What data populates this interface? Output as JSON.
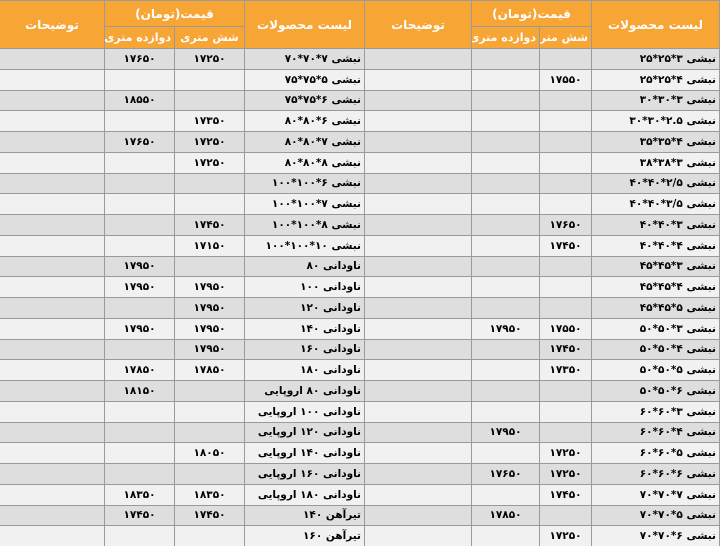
{
  "header": {
    "product": "لیست محصولات",
    "price": "قیمت(تومان)",
    "six": "شش متری",
    "twelve": "دوازده متری",
    "notes": "توضیحات"
  },
  "tables": [
    {
      "rows": [
        [
          "نبشی ۳*۲۵*۲۵",
          null,
          null,
          null
        ],
        [
          "نبشی ۴*۲۵*۲۵",
          "۱۷۵۵۰",
          null,
          null
        ],
        [
          "نبشی ۳*۳۰*۳۰",
          null,
          null,
          null
        ],
        [
          "نبشی ۲.۵*۳۰*۳۰",
          null,
          null,
          null
        ],
        [
          "نبشی ۴*۳۵*۳۵",
          null,
          null,
          null
        ],
        [
          "نبشی ۳*۳۸*۳۸",
          null,
          null,
          null
        ],
        [
          "نبشی ۲/۵*۴۰*۴۰",
          null,
          null,
          null
        ],
        [
          "نبشی ۳/۵*۴۰*۴۰",
          null,
          null,
          null
        ],
        [
          "نبشی ۳*۴۰*۴۰",
          "۱۷۶۵۰",
          null,
          null
        ],
        [
          "نبشی ۴*۴۰*۴۰",
          "۱۷۴۵۰",
          null,
          null
        ],
        [
          "نبشی ۳*۴۵*۴۵",
          null,
          null,
          null
        ],
        [
          "نبشی ۴*۴۵*۴۵",
          null,
          null,
          null
        ],
        [
          "نبشی ۵*۴۵*۴۵",
          null,
          null,
          null
        ],
        [
          "نبشی ۳*۵۰*۵۰",
          "۱۷۵۵۰",
          "۱۷۹۵۰",
          null
        ],
        [
          "نبشی ۴*۵۰*۵۰",
          "۱۷۴۵۰",
          null,
          null
        ],
        [
          "نبشی ۵*۵۰*۵۰",
          "۱۷۳۵۰",
          null,
          null
        ],
        [
          "نبشی ۶*۵۰*۵۰",
          null,
          null,
          null
        ],
        [
          "نبشی ۳*۶۰*۶۰",
          null,
          null,
          null
        ],
        [
          "نبشی ۴*۶۰*۶۰",
          null,
          "۱۷۹۵۰",
          null
        ],
        [
          "نبشی ۵*۶۰*۶۰",
          "۱۷۲۵۰",
          null,
          null
        ],
        [
          "نبشی ۶*۶۰*۶۰",
          "۱۷۲۵۰",
          "۱۷۶۵۰",
          null
        ],
        [
          "نبشی ۷*۷۰*۷۰",
          "۱۷۴۵۰",
          null,
          null
        ],
        [
          "نبشی ۵*۷۰*۷۰",
          null,
          "۱۷۸۵۰",
          null
        ],
        [
          "نبشی ۶*۷۰*۷۰",
          "۱۷۲۵۰",
          null,
          null
        ]
      ]
    },
    {
      "rows": [
        [
          "نبشی ۷*۷۰*۷۰",
          "۱۷۲۵۰",
          "۱۷۶۵۰",
          null
        ],
        [
          "نبشی ۵*۷۵*۷۵",
          null,
          null,
          null
        ],
        [
          "نبشی ۶*۷۵*۷۵",
          null,
          "۱۸۵۵۰",
          null
        ],
        [
          "نبشی ۶*۸۰*۸۰",
          "۱۷۳۵۰",
          null,
          null
        ],
        [
          "نبشی ۷*۸۰*۸۰",
          "۱۷۲۵۰",
          "۱۷۶۵۰",
          null
        ],
        [
          "نبشی ۸*۸۰*۸۰",
          "۱۷۲۵۰",
          null,
          null
        ],
        [
          "نبشی ۶*۱۰۰*۱۰۰",
          null,
          null,
          null
        ],
        [
          "نبشی ۷*۱۰۰*۱۰۰",
          null,
          null,
          null
        ],
        [
          "نبشی ۸*۱۰۰*۱۰۰",
          "۱۷۴۵۰",
          null,
          null
        ],
        [
          "نبشی ۱۰*۱۰۰*۱۰۰",
          "۱۷۱۵۰",
          null,
          null
        ],
        [
          "ناودانی ۸۰",
          null,
          "۱۷۹۵۰",
          null
        ],
        [
          "ناودانی ۱۰۰",
          "۱۷۹۵۰",
          "۱۷۹۵۰",
          null
        ],
        [
          "ناودانی ۱۲۰",
          "۱۷۹۵۰",
          null,
          null
        ],
        [
          "ناودانی ۱۴۰",
          "۱۷۹۵۰",
          "۱۷۹۵۰",
          null
        ],
        [
          "ناودانی ۱۶۰",
          "۱۷۹۵۰",
          null,
          null
        ],
        [
          "ناودانی ۱۸۰",
          "۱۷۸۵۰",
          "۱۷۸۵۰",
          null
        ],
        [
          "ناودانی ۸۰ اروپایی",
          null,
          "۱۸۱۵۰",
          null
        ],
        [
          "ناودانی ۱۰۰ اروپایی",
          null,
          null,
          null
        ],
        [
          "ناودانی ۱۲۰ اروپایی",
          null,
          null,
          null
        ],
        [
          "ناودانی ۱۴۰ اروپایی",
          "۱۸۰۵۰",
          null,
          null
        ],
        [
          "ناودانی ۱۶۰ اروپایی",
          null,
          null,
          null
        ],
        [
          "ناودانی ۱۸۰ اروپایی",
          "۱۸۳۵۰",
          "۱۸۳۵۰",
          null
        ],
        [
          "تیرآهن ۱۴۰",
          "۱۷۴۵۰",
          "۱۷۴۵۰",
          null
        ],
        [
          "تیرآهن ۱۶۰",
          null,
          null,
          null
        ]
      ]
    }
  ]
}
